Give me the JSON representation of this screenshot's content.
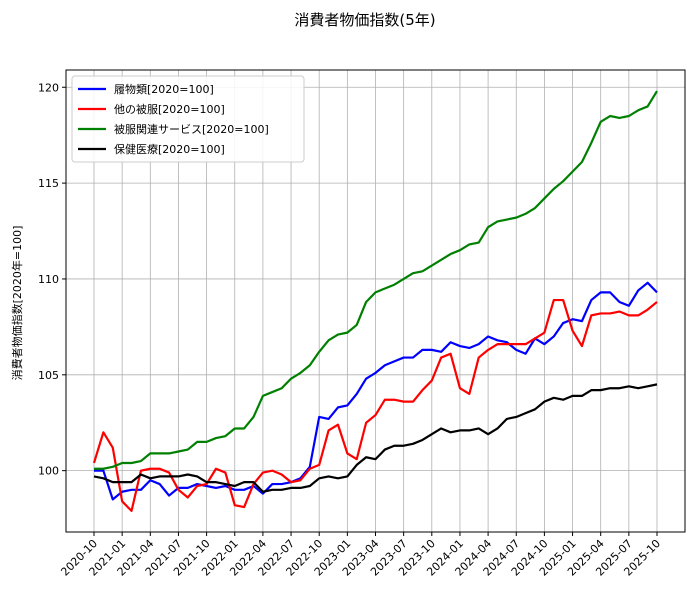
{
  "chart_data": {
    "type": "line",
    "title": "消費者物価指数(5年)",
    "xlabel": "",
    "ylabel": "消費者物価指数[2020年=100]",
    "ylim": [
      96.8,
      120.9
    ],
    "yticks": [
      100,
      105,
      110,
      115,
      120
    ],
    "grid": true,
    "legend_position": "top-left",
    "x": [
      "2020-10",
      "2020-11",
      "2020-12",
      "2021-01",
      "2021-02",
      "2021-03",
      "2021-04",
      "2021-05",
      "2021-06",
      "2021-07",
      "2021-08",
      "2021-09",
      "2021-10",
      "2021-11",
      "2021-12",
      "2022-01",
      "2022-02",
      "2022-03",
      "2022-04",
      "2022-05",
      "2022-06",
      "2022-07",
      "2022-08",
      "2022-09",
      "2022-10",
      "2022-11",
      "2022-12",
      "2023-01",
      "2023-02",
      "2023-03",
      "2023-04",
      "2023-05",
      "2023-06",
      "2023-07",
      "2023-08",
      "2023-09",
      "2023-10",
      "2023-11",
      "2023-12",
      "2024-01",
      "2024-02",
      "2024-03",
      "2024-04",
      "2024-05",
      "2024-06",
      "2024-07",
      "2024-08",
      "2024-09",
      "2024-10",
      "2024-11",
      "2024-12",
      "2025-01",
      "2025-02",
      "2025-03",
      "2025-04",
      "2025-05",
      "2025-06",
      "2025-07",
      "2025-08",
      "2025-09",
      "2025-10"
    ],
    "xticks": [
      "2020-10",
      "2021-01",
      "2021-04",
      "2021-07",
      "2021-10",
      "2022-01",
      "2022-04",
      "2022-07",
      "2022-10",
      "2023-01",
      "2023-04",
      "2023-07",
      "2023-10",
      "2024-01",
      "2024-04",
      "2024-07",
      "2024-10",
      "2025-01",
      "2025-04",
      "2025-07",
      "2025-10"
    ],
    "series": [
      {
        "name": "履物類[2020=100]",
        "color": "#0000ff",
        "values": [
          100.0,
          100.0,
          98.5,
          98.9,
          99.0,
          99.0,
          99.5,
          99.3,
          98.7,
          99.1,
          99.1,
          99.3,
          99.2,
          99.1,
          99.2,
          99.0,
          99.0,
          99.2,
          98.8,
          99.3,
          99.3,
          99.4,
          99.6,
          100.2,
          102.8,
          102.7,
          103.3,
          103.4,
          104.0,
          104.8,
          105.1,
          105.5,
          105.7,
          105.9,
          105.9,
          106.3,
          106.3,
          106.2,
          106.7,
          106.5,
          106.4,
          106.6,
          107.0,
          106.8,
          106.7,
          106.3,
          106.1,
          106.9,
          106.6,
          107.0,
          107.7,
          107.9,
          107.8,
          108.9,
          109.3,
          109.3,
          108.8,
          108.6,
          109.4,
          109.8,
          109.3
        ]
      },
      {
        "name": "他の被服[2020=100]",
        "color": "#ff0000",
        "values": [
          100.4,
          102.0,
          101.2,
          98.4,
          97.9,
          100.0,
          100.1,
          100.1,
          99.9,
          99.0,
          98.6,
          99.2,
          99.3,
          100.1,
          99.9,
          98.2,
          98.1,
          99.3,
          99.9,
          100.0,
          99.8,
          99.4,
          99.5,
          100.1,
          100.3,
          102.1,
          102.4,
          100.9,
          100.6,
          102.5,
          102.9,
          103.7,
          103.7,
          103.6,
          103.6,
          104.2,
          104.7,
          105.9,
          106.1,
          104.3,
          104.0,
          105.9,
          106.3,
          106.6,
          106.6,
          106.6,
          106.6,
          106.9,
          107.2,
          108.9,
          108.9,
          107.3,
          106.5,
          108.1,
          108.2,
          108.2,
          108.3,
          108.1,
          108.1,
          108.4,
          108.8
        ]
      },
      {
        "name": "被服関連サービス[2020=100]",
        "color": "#008000",
        "values": [
          100.1,
          100.1,
          100.2,
          100.4,
          100.4,
          100.5,
          100.9,
          100.9,
          100.9,
          101.0,
          101.1,
          101.5,
          101.5,
          101.7,
          101.8,
          102.2,
          102.2,
          102.8,
          103.9,
          104.1,
          104.3,
          104.8,
          105.1,
          105.5,
          106.2,
          106.8,
          107.1,
          107.2,
          107.6,
          108.8,
          109.3,
          109.5,
          109.7,
          110.0,
          110.3,
          110.4,
          110.7,
          111.0,
          111.3,
          111.5,
          111.8,
          111.9,
          112.7,
          113.0,
          113.1,
          113.2,
          113.4,
          113.7,
          114.2,
          114.7,
          115.1,
          115.6,
          116.1,
          117.1,
          118.2,
          118.5,
          118.4,
          118.5,
          118.8,
          119.0,
          119.8
        ]
      },
      {
        "name": "保健医療[2020=100]",
        "color": "#000000",
        "values": [
          99.7,
          99.6,
          99.4,
          99.4,
          99.4,
          99.8,
          99.6,
          99.7,
          99.7,
          99.7,
          99.8,
          99.7,
          99.4,
          99.4,
          99.3,
          99.2,
          99.4,
          99.4,
          98.9,
          99.0,
          99.0,
          99.1,
          99.1,
          99.2,
          99.6,
          99.7,
          99.6,
          99.7,
          100.3,
          100.7,
          100.6,
          101.1,
          101.3,
          101.3,
          101.4,
          101.6,
          101.9,
          102.2,
          102.0,
          102.1,
          102.1,
          102.2,
          101.9,
          102.2,
          102.7,
          102.8,
          103.0,
          103.2,
          103.6,
          103.8,
          103.7,
          103.9,
          103.9,
          104.2,
          104.2,
          104.3,
          104.3,
          104.4,
          104.3,
          104.4,
          104.5
        ]
      }
    ]
  }
}
